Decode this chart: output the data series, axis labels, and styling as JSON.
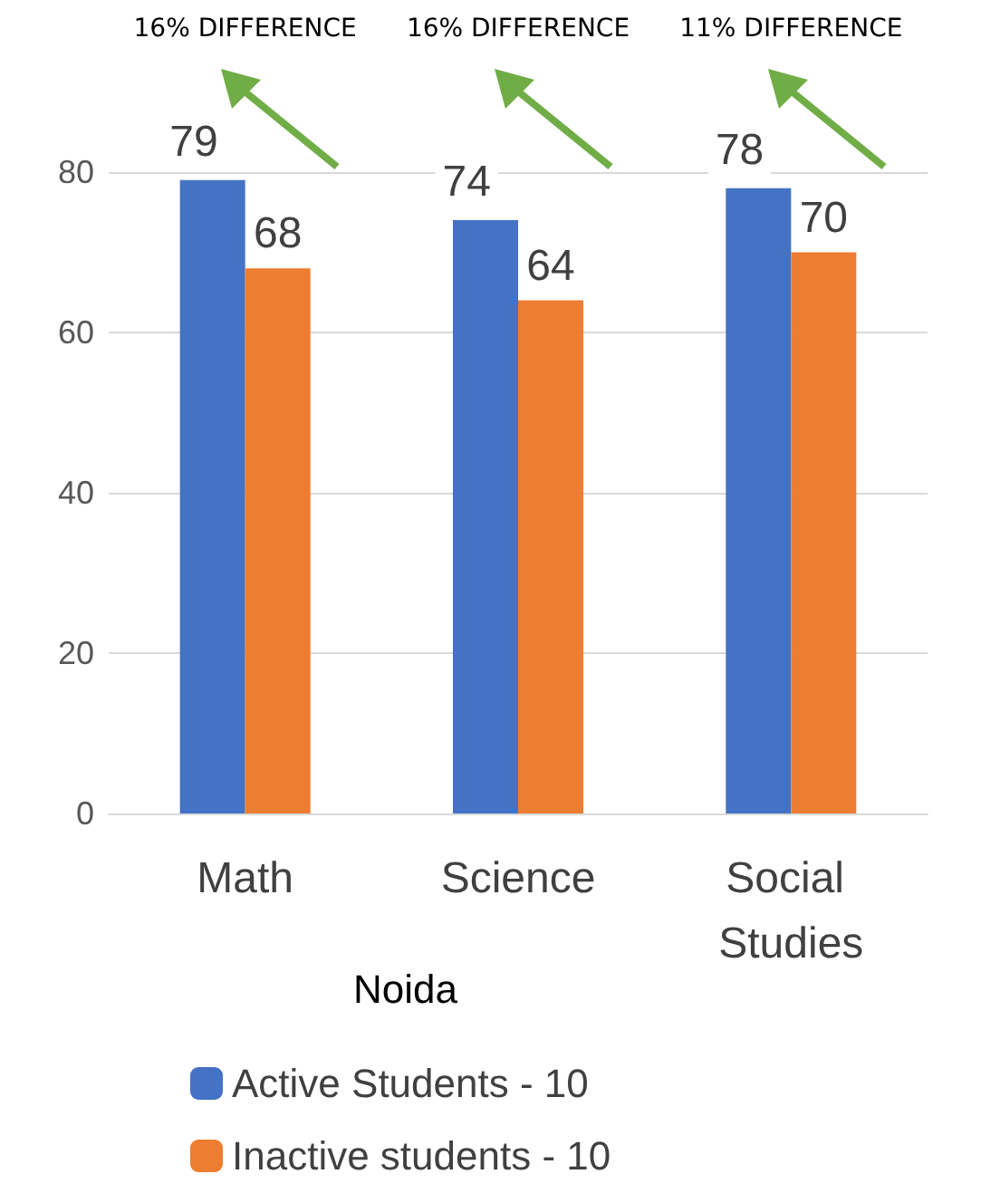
{
  "chart_data": {
    "type": "bar",
    "categories": [
      "Math",
      "Science",
      "Social Studies"
    ],
    "series": [
      {
        "name": "Active Students - 10",
        "color": "#4472c4",
        "values": [
          79,
          74,
          78
        ]
      },
      {
        "name": "Inactive students - 10",
        "color": "#ed7d31",
        "values": [
          68,
          64,
          70
        ]
      }
    ],
    "ylim": [
      0,
      80
    ],
    "yticks": [
      0,
      20,
      40,
      60,
      80
    ],
    "grid": "y",
    "data_labels": true,
    "legend": "bottom",
    "legend_title": "Noida",
    "annotations": [
      "16% DIFFERENCE",
      "16% DIFFERENCE",
      "11% DIFFERENCE"
    ]
  }
}
